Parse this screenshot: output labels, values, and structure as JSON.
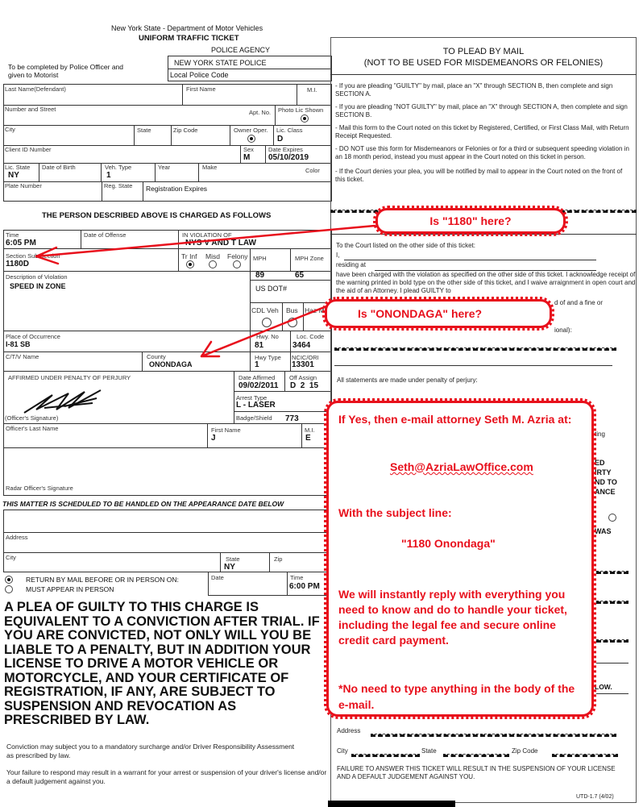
{
  "header": {
    "agency_line": "New York State - Department of Motor Vehicles",
    "title": "UNIFORM TRAFFIC TICKET",
    "police_agency_label": "POLICE AGENCY",
    "police_agency": "NEW YORK STATE POLICE",
    "local_police_code": "Local Police Code",
    "instruction": "To be completed by Police Officer and given to Motorist"
  },
  "defendant": {
    "last_name": "Last Name(Defendant)",
    "first_name": "First Name",
    "mi": "M.I.",
    "street": "Number and Street",
    "apt": "Apt. No.",
    "photo_lic": "Photo Lic Shown",
    "city": "City",
    "state": "State",
    "zip": "Zip Code",
    "owner_oper": "Owner Oper.",
    "lic_class_label": "Lic. Class",
    "lic_class": "D",
    "client_id": "Client ID Number",
    "sex_label": "Sex",
    "sex": "M",
    "date_expires_label": "Date Expires",
    "date_expires": "05/10/2019",
    "lic_state_label": "Lic. State",
    "lic_state": "NY",
    "dob": "Date of Birth",
    "veh_type_label": "Veh. Type",
    "veh_type": "1",
    "year": "Year",
    "make": "Make",
    "color": "Color",
    "plate": "Plate Number",
    "reg_state": "Reg. State",
    "reg_expires": "Registration Expires"
  },
  "charge": {
    "heading": "THE PERSON DESCRIBED ABOVE IS CHARGED AS FOLLOWS",
    "time_label": "Time",
    "time": "6:05 PM",
    "date_offense": "Date of Offense",
    "violation_label": "IN VIOLATION OF",
    "violation": "NYS V AND T LAW",
    "section_label": "Section Sub Section",
    "section": "1180D",
    "tr_inf": "Tr Inf",
    "misd": "Misd",
    "felony": "Felony",
    "mph_label": "MPH",
    "mph": "89",
    "mph_zone_label": "MPH Zone",
    "mph_zone": "65",
    "desc_label": "Description of Violation",
    "desc": "SPEED IN ZONE",
    "us_dot": "US DOT#",
    "cdl": "CDL Veh",
    "bus": "Bus",
    "haz": "Haz Mat",
    "place_label": "Place of Occurrence",
    "place": "I-81 SB",
    "hwy_no_label": "Hwy. No",
    "hwy_no": "81",
    "loc_code_label": "Loc. Code",
    "loc_code": "3464",
    "ctv": "C/T/V Name",
    "county_label": "County",
    "county": "ONONDAGA",
    "hwy_type_label": "Hwy Type",
    "hwy_type": "1",
    "ncic_label": "NCIC/ORI",
    "ncic": "13301",
    "affirmed": "AFFIRMED UNDER PENALTY OF PERJURY",
    "date_affirmed_label": "Date Affirmed",
    "date_affirmed": "09/02/2011",
    "off_assign_label": "Off Assign",
    "off_assign": "D  2  15",
    "arrest_type_label": "Arrest Type",
    "arrest_type": "L - LASER",
    "officer_sig": "(Officer's Signature)",
    "badge_label": "Badge/Shield",
    "badge": "773",
    "officer_last": "Officer's Last Name",
    "officer_first_label": "First Name",
    "officer_first": "J",
    "officer_mi_label": "M.I.",
    "officer_mi": "E",
    "radar_sig": "Radar Officer's Signature"
  },
  "appearance": {
    "heading": "THIS MATTER IS SCHEDULED TO BE HANDLED ON THE APPEARANCE DATE BELOW",
    "address": "Address",
    "city": "City",
    "state_label": "State",
    "state": "NY",
    "zip": "Zip",
    "return_mail": "RETURN BY MAIL BEFORE OR IN PERSON ON:",
    "must_appear": "MUST APPEAR IN PERSON",
    "date_label": "Date",
    "time_label": "Time",
    "time": "6:00 PM"
  },
  "warning": {
    "big": "A PLEA OF GUILTY TO THIS CHARGE IS EQUIVALENT TO A CONVICTION AFTER TRIAL.  IF YOU ARE CONVICTED, NOT ONLY WILL YOU BE LIABLE TO A PENALTY, BUT IN ADDITION YOUR LICENSE TO DRIVE A MOTOR VEHICLE OR MOTORCYCLE, AND YOUR CERTIFICATE OF REGISTRATION, IF ANY, ARE SUBJECT TO SUSPENSION AND REVOCATION AS PRESCRIBED BY LAW.",
    "surcharge": "Conviction may subject you to a mandatory surcharge and/or Driver Responsibility Assessment as prescribed by law.",
    "failure": "Your failure to respond may result in a warrant for your arrest or suspension of your driver's license and/or a default judgement against you."
  },
  "plea": {
    "title": "TO PLEAD BY MAIL",
    "subtitle": "(NOT TO BE USED FOR MISDEMEANORS OR FELONIES)",
    "bullets": [
      "- If you are pleading \"GUILTY\" by mail, place an \"X\" through SECTION B, then complete and sign SECTION A.",
      "- If you are pleading \"NOT GUILTY\" by mail, place an \"X\" through SECTION A, then complete and sign SECTION B.",
      "- Mail this form to the Court noted on this ticket by Registered, Certified, or First Class Mail, with Return Receipt Requested.",
      "- DO NOT use this form for Misdemeanors or Felonies or for a third or subsequent speeding violation in an 18 month period, instead you must appear in the Court noted on this ticket in person.",
      "- If the Court denies your plea, you will be notified by mail to appear in the Court noted on the front of this ticket."
    ],
    "to_court": "To the Court listed on the other side of this ticket:",
    "i": "I,",
    "residing": "residing at",
    "statement": "have been charged with the violation as specified on the other side of this ticket.  I acknowledge receipt of the warning printed in bold type on the other side of this ticket, and I waive arraignment in open court and the aid of an Attorney.  I plead GUILTY to",
    "frag1": "d of and a fine or",
    "frag2": "ional):",
    "perjury": "All statements are made under penalty of perjury:",
    "frag_ting": "ting",
    "frag_caps": [
      "ED",
      "IRTY",
      "ND TO",
      "ANCE"
    ],
    "frag_was": "WAS",
    "frag_low": "LOW.",
    "address": "Address",
    "city": "City",
    "state": "State",
    "zip": "Zip Code",
    "failure": "FAILURE TO ANSWER THIS TICKET WILL RESULT IN THE SUSPENSION OF YOUR LICENSE AND A DEFAULT JUDGEMENT AGAINST YOU.",
    "form_no": "UTD-1.7 (4/02)"
  },
  "callouts": {
    "q1": "Is \"1180\" here?",
    "q2": "Is \"ONONDAGA\" here?",
    "line1": "If Yes, then e-mail attorney Seth M. Azria at:",
    "email": "Seth@AzriaLawOffice.com",
    "subject_label": "With the subject line:",
    "subject": "\"1180 Onondaga\"",
    "reply": "We will instantly reply with everything you need to know and do to handle your ticket, including the legal fee and secure online credit card payment.",
    "note": "*No need to type anything in the body of the e-mail.",
    "color": "#e8101c"
  }
}
